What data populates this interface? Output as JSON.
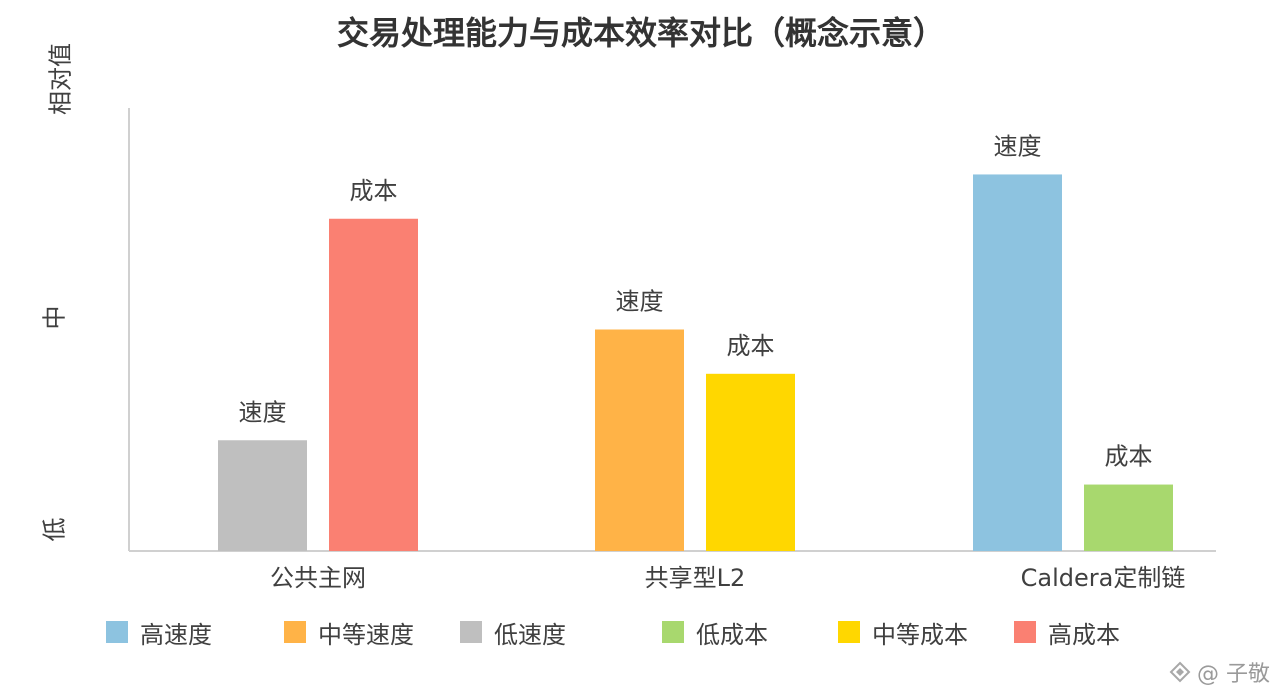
{
  "chart_data": {
    "type": "bar",
    "title": "交易处理能力与成本效率对比（概念示意）",
    "ylabel": "相对值",
    "y_tick_labels": [
      "低",
      "中"
    ],
    "ylim": [
      0,
      100
    ],
    "grid": false,
    "legend_position": "bottom",
    "categories": [
      "公共主网",
      "共享型L2",
      "Caldera定制链"
    ],
    "bars": [
      {
        "category": "公共主网",
        "label": "速度",
        "value": 25,
        "legend": "低速度",
        "color": "#BFBFBF"
      },
      {
        "category": "公共主网",
        "label": "成本",
        "value": 75,
        "legend": "高成本",
        "color": "#FA8072"
      },
      {
        "category": "共享型L2",
        "label": "速度",
        "value": 50,
        "legend": "中等速度",
        "color": "#FFB347"
      },
      {
        "category": "共享型L2",
        "label": "成本",
        "value": 40,
        "legend": "中等成本",
        "color": "#FFD700"
      },
      {
        "category": "Caldera定制链",
        "label": "速度",
        "value": 85,
        "legend": "高速度",
        "color": "#8DC3E0"
      },
      {
        "category": "Caldera定制链",
        "label": "成本",
        "value": 15,
        "legend": "低成本",
        "color": "#A8D86E"
      }
    ],
    "legend": [
      {
        "label": "高速度",
        "color": "#8DC3E0"
      },
      {
        "label": "中等速度",
        "color": "#FFB347"
      },
      {
        "label": "低速度",
        "color": "#BFBFBF"
      },
      {
        "label": "低成本",
        "color": "#A8D86E"
      },
      {
        "label": "中等成本",
        "color": "#FFD700"
      },
      {
        "label": "高成本",
        "color": "#FA8072"
      }
    ]
  },
  "watermark": {
    "text": "@ 子敬",
    "icon": "logo-icon"
  }
}
